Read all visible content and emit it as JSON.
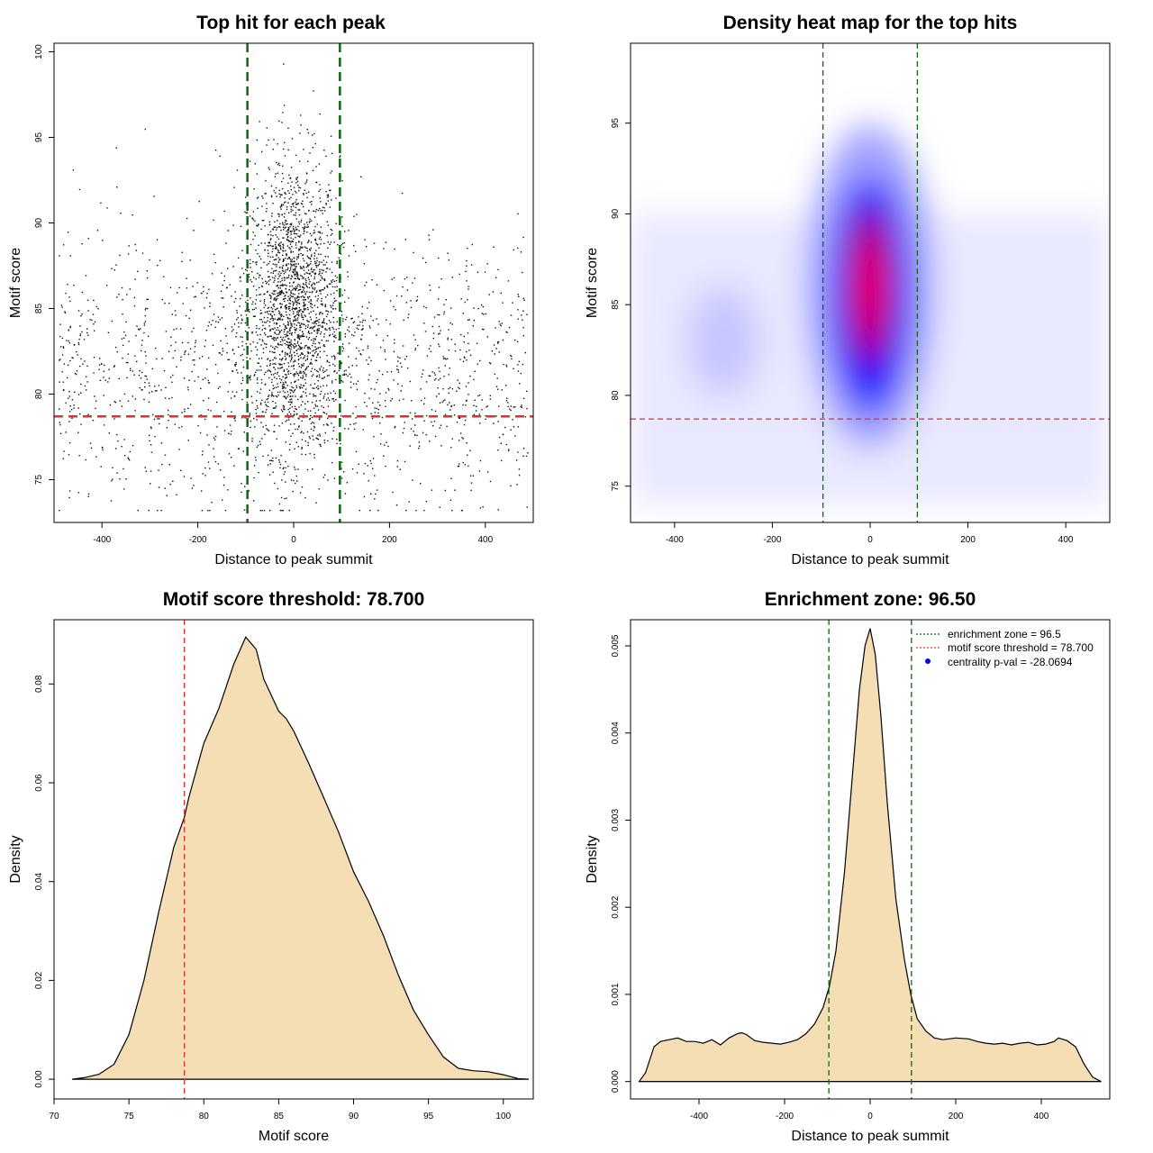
{
  "colors": {
    "points": "#111111",
    "threshold_line": "#e03030",
    "zone_line": "#0a6b0a",
    "density_fill": "#f5deb3",
    "heat_low": "#ffffff",
    "heat_mid": "#0000ff",
    "heat_high": "#ff0000",
    "legend_marker": "#0000ff"
  },
  "chart_data": [
    {
      "type": "scatter",
      "title": "Top hit for each peak",
      "xlabel": "Distance to peak summit",
      "ylabel": "Motif score",
      "xlim": [
        -500,
        500
      ],
      "ylim": [
        72.5,
        100.5
      ],
      "xticks": [
        -400,
        -200,
        0,
        200,
        400
      ],
      "yticks": [
        75,
        80,
        85,
        90,
        95,
        100
      ],
      "threshold_y": 78.7,
      "zone_x": [
        -96.5,
        96.5
      ],
      "grid": false,
      "distribution": {
        "central": {
          "n": 1900,
          "x_sd": 48,
          "y_mean": 85.2,
          "y_sd": 4.3,
          "y_range": [
            73.2,
            99.4
          ]
        },
        "background": {
          "n": 1500,
          "x_range": [
            -490,
            490
          ],
          "y_mean": 81.5,
          "y_sd": 3.9,
          "y_range": [
            73.2,
            97
          ]
        }
      }
    },
    {
      "type": "heatmap",
      "title": "Density heat map for the top hits",
      "xlabel": "Distance to peak summit",
      "ylabel": "Motif score",
      "xlim": [
        -490,
        490
      ],
      "ylim": [
        73,
        99.4
      ],
      "xticks": [
        -400,
        -200,
        0,
        200,
        400
      ],
      "yticks": [
        75,
        80,
        85,
        90,
        95
      ],
      "threshold_y": 78.7,
      "zone_x": [
        -96.5,
        96.5
      ],
      "peak": {
        "x": 0,
        "y": 86
      }
    },
    {
      "type": "area",
      "title": "Motif score threshold: 78.700",
      "xlabel": "Motif score",
      "ylabel": "Density",
      "xlim": [
        70,
        102
      ],
      "ylim": [
        -0.004,
        0.093
      ],
      "xticks": [
        70,
        75,
        80,
        85,
        90,
        95,
        100
      ],
      "yticks": [
        0.0,
        0.02,
        0.04,
        0.06,
        0.08
      ],
      "ytick_labels": [
        "0.00",
        "0.02",
        "0.04",
        "0.06",
        "0.08"
      ],
      "threshold_x": 78.7,
      "x": [
        71.2,
        72,
        73,
        74,
        75,
        76,
        77,
        78,
        78.7,
        79,
        80,
        81,
        82,
        82.8,
        83.5,
        84,
        85,
        85.5,
        86,
        87,
        88,
        89,
        90,
        91,
        92,
        93,
        94,
        95,
        96,
        97,
        98,
        99,
        100,
        101,
        101.7
      ],
      "y": [
        0.0,
        0.0003,
        0.001,
        0.003,
        0.009,
        0.02,
        0.034,
        0.047,
        0.053,
        0.057,
        0.068,
        0.075,
        0.084,
        0.0895,
        0.087,
        0.081,
        0.0745,
        0.073,
        0.0705,
        0.064,
        0.057,
        0.05,
        0.042,
        0.036,
        0.029,
        0.021,
        0.014,
        0.009,
        0.0045,
        0.0022,
        0.0017,
        0.0015,
        0.0009,
        0.0001,
        0.0
      ]
    },
    {
      "type": "area",
      "title": "Enrichment zone: 96.50",
      "xlabel": "Distance to peak summit",
      "ylabel": "Density",
      "xlim": [
        -560,
        560
      ],
      "ylim": [
        -0.0002,
        0.0053
      ],
      "xticks": [
        -400,
        -200,
        0,
        200,
        400
      ],
      "yticks": [
        0,
        0.001,
        0.002,
        0.003,
        0.004,
        0.005
      ],
      "ytick_labels": [
        "0.000",
        "0.001",
        "0.002",
        "0.003",
        "0.004",
        "0.005"
      ],
      "zone_x": [
        -96.5,
        96.5
      ],
      "x": [
        -540,
        -525,
        -505,
        -490,
        -470,
        -450,
        -430,
        -410,
        -390,
        -370,
        -350,
        -330,
        -310,
        -300,
        -290,
        -270,
        -250,
        -230,
        -210,
        -190,
        -170,
        -150,
        -130,
        -110,
        -95,
        -80,
        -60,
        -40,
        -25,
        -12,
        0,
        12,
        25,
        40,
        60,
        80,
        95,
        110,
        130,
        150,
        170,
        200,
        230,
        250,
        270,
        290,
        310,
        330,
        350,
        370,
        390,
        410,
        430,
        440,
        460,
        480,
        500,
        520,
        540
      ],
      "y": [
        0.0,
        0.0001,
        0.0004,
        0.00046,
        0.00048,
        0.0005,
        0.00046,
        0.00046,
        0.00044,
        0.00048,
        0.00042,
        0.0005,
        0.00055,
        0.00056,
        0.00054,
        0.00047,
        0.00045,
        0.00044,
        0.00043,
        0.00045,
        0.00048,
        0.00055,
        0.00066,
        0.00085,
        0.0011,
        0.0015,
        0.0024,
        0.0036,
        0.0045,
        0.005,
        0.0052,
        0.0049,
        0.0042,
        0.0032,
        0.0021,
        0.0014,
        0.001,
        0.00072,
        0.00058,
        0.0005,
        0.00048,
        0.0005,
        0.00049,
        0.00046,
        0.00044,
        0.00043,
        0.00044,
        0.00042,
        0.00044,
        0.00045,
        0.00042,
        0.00043,
        0.00046,
        0.0005,
        0.00047,
        0.0004,
        0.0002,
        5e-05,
        0.0
      ],
      "legend": [
        {
          "label": "enrichment zone = 96.5",
          "style": "dotted-green"
        },
        {
          "label": "motif score threshold = 78.700",
          "style": "dotted-red"
        },
        {
          "label": "centrality p-val = -28.0694",
          "style": "point-blue"
        }
      ],
      "legend_position": "top-right"
    }
  ]
}
